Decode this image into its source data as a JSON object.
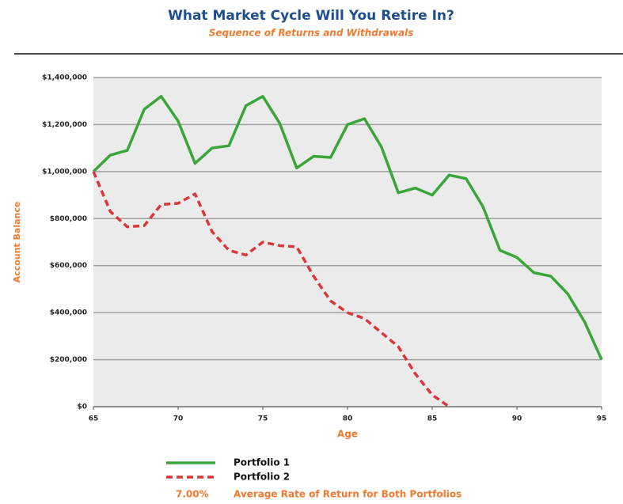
{
  "chart_data": {
    "type": "line",
    "title": "What Market Cycle Will You Retire In?",
    "subtitle": "Sequence of Returns and Withdrawals",
    "x_label": "Age",
    "y_label": "Account Balance",
    "x": [
      65,
      66,
      67,
      68,
      69,
      70,
      71,
      72,
      73,
      74,
      75,
      76,
      77,
      78,
      79,
      80,
      81,
      82,
      83,
      84,
      85,
      86,
      87,
      88,
      89,
      90,
      91,
      92,
      93,
      94,
      95
    ],
    "series": [
      {
        "name": "Portfolio 1",
        "color": "#3aa63a",
        "dash": false,
        "values": [
          1000000,
          1070000,
          1090000,
          1265000,
          1320000,
          1215000,
          1035000,
          1100000,
          1110000,
          1280000,
          1320000,
          1205000,
          1015000,
          1065000,
          1060000,
          1200000,
          1225000,
          1105000,
          910000,
          930000,
          900000,
          985000,
          970000,
          850000,
          665000,
          635000,
          570000,
          555000,
          480000,
          360000,
          200000
        ]
      },
      {
        "name": "Portfolio 2",
        "color": "#d9383a",
        "dash": true,
        "values": [
          1000000,
          830000,
          765000,
          770000,
          860000,
          865000,
          905000,
          745000,
          665000,
          645000,
          700000,
          685000,
          680000,
          555000,
          450000,
          400000,
          375000,
          315000,
          255000,
          140000,
          50000,
          0,
          null,
          null,
          null,
          null,
          null,
          null,
          null,
          null,
          null
        ]
      }
    ],
    "xlim": [
      65,
      95
    ],
    "xticks": [
      65,
      70,
      75,
      80,
      85,
      90,
      95
    ],
    "ylim": [
      0,
      1400000
    ],
    "yticks": [
      {
        "value": 0,
        "label": "$0"
      },
      {
        "value": 200000,
        "label": "$200,000"
      },
      {
        "value": 400000,
        "label": "$400,000"
      },
      {
        "value": 600000,
        "label": "$600,000"
      },
      {
        "value": 800000,
        "label": "$800,000"
      },
      {
        "value": 1000000,
        "label": "$1,000,000"
      },
      {
        "value": 1200000,
        "label": "$1,200,000"
      },
      {
        "value": 1400000,
        "label": "$1,400,000"
      }
    ],
    "grid": true,
    "rate_value_label": "7.00%",
    "rate_text": "Average Rate of Return for Both Portfolios"
  }
}
